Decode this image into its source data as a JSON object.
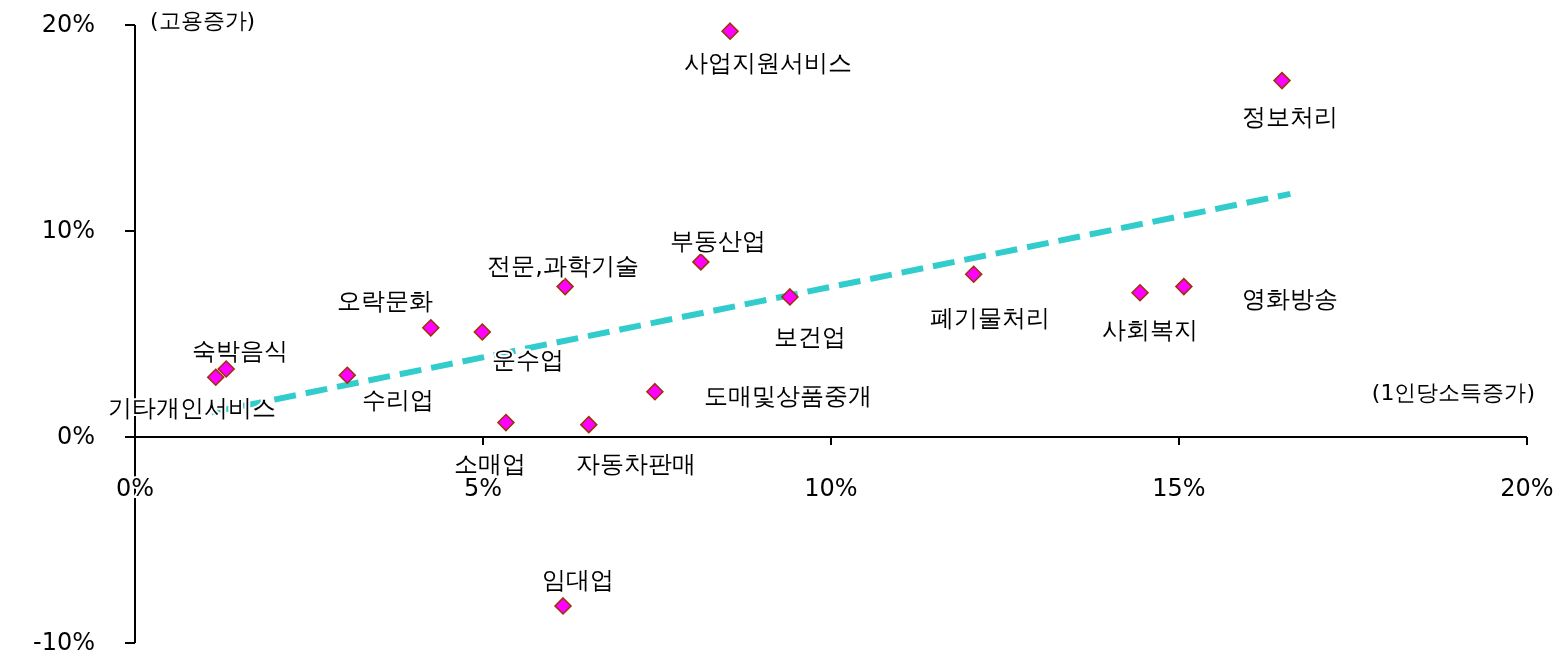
{
  "chart_data": {
    "type": "scatter",
    "xlabel": "(1인당소득증가)",
    "ylabel": "(고용증가)",
    "xlim": [
      0,
      20
    ],
    "ylim": [
      -10,
      20
    ],
    "xticks": [
      {
        "value": 0,
        "label": "0%"
      },
      {
        "value": 5,
        "label": "5%"
      },
      {
        "value": 10,
        "label": "10%"
      },
      {
        "value": 15,
        "label": "15%"
      },
      {
        "value": 20,
        "label": "20%"
      }
    ],
    "yticks": [
      {
        "value": -10,
        "label": "-10%"
      },
      {
        "value": 0,
        "label": "0%"
      },
      {
        "value": 10,
        "label": "10%"
      },
      {
        "value": 20,
        "label": "20%"
      }
    ],
    "grid": false,
    "series": [
      {
        "marker": "diamond",
        "color": "#ff00ff",
        "x": [
          8.55,
          16.48,
          8.13,
          6.18,
          4.25,
          4.99,
          9.41,
          12.05,
          14.44,
          15.07,
          1.31,
          1.16,
          3.05,
          7.47,
          5.33,
          6.52,
          6.15
        ],
        "values": [
          19.7,
          17.3,
          8.5,
          7.3,
          5.3,
          5.1,
          6.8,
          7.9,
          7.0,
          7.3,
          3.3,
          2.9,
          3.0,
          2.2,
          0.7,
          0.6,
          -8.2
        ]
      },
      {
        "type": "line",
        "color": "#33cccc",
        "line_style": "dashed",
        "x": [
          1.1,
          16.6
        ],
        "values": [
          1.2,
          11.8
        ]
      }
    ],
    "annotations": [
      {
        "text": "사업지원서비스",
        "x": 8.55,
        "y": 19.7
      },
      {
        "text": "정보처리",
        "x": 16.48,
        "y": 17.3
      },
      {
        "text": "부동산업",
        "x": 8.13,
        "y": 8.5
      },
      {
        "text": "전문,과학기술",
        "x": 6.18,
        "y": 7.3
      },
      {
        "text": "오락문화",
        "x": 4.25,
        "y": 5.3
      },
      {
        "text": "운수업",
        "x": 4.99,
        "y": 5.1
      },
      {
        "text": "보건업",
        "x": 9.41,
        "y": 6.8
      },
      {
        "text": "폐기물처리",
        "x": 12.05,
        "y": 7.9
      },
      {
        "text": "사회복지",
        "x": 14.44,
        "y": 7.0
      },
      {
        "text": "영화방송",
        "x": 15.07,
        "y": 7.3
      },
      {
        "text": "숙박음식",
        "x": 1.31,
        "y": 3.3
      },
      {
        "text": "기타개인서비스",
        "x": 1.16,
        "y": 2.9
      },
      {
        "text": "수리업",
        "x": 3.05,
        "y": 3.0
      },
      {
        "text": "도매및상품중개",
        "x": 7.47,
        "y": 2.2
      },
      {
        "text": "소매업",
        "x": 5.33,
        "y": 0.7
      },
      {
        "text": "자동차판매",
        "x": 6.52,
        "y": 0.6
      },
      {
        "text": "임대업",
        "x": 6.15,
        "y": -8.2
      }
    ]
  }
}
